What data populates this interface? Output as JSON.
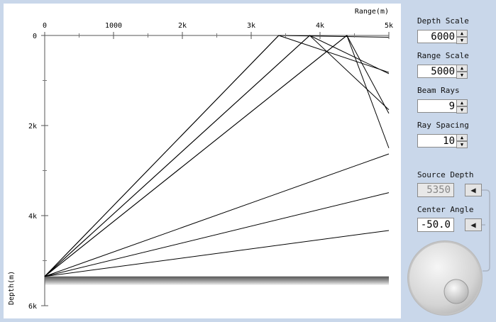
{
  "plot": {
    "range_label": "Range(m)",
    "depth_label": "Depth(m)",
    "x_ticks": [
      {
        "value": 0,
        "label": "0"
      },
      {
        "value": 1000,
        "label": "1000"
      },
      {
        "value": 2000,
        "label": "2k"
      },
      {
        "value": 3000,
        "label": "3k"
      },
      {
        "value": 4000,
        "label": "4k"
      },
      {
        "value": 5000,
        "label": "5k"
      }
    ],
    "y_ticks": [
      {
        "value": 0,
        "label": "0"
      },
      {
        "value": 2000,
        "label": "2k"
      },
      {
        "value": 4000,
        "label": "4k"
      },
      {
        "value": 6000,
        "label": "6k"
      }
    ],
    "x_range": [
      0,
      5000
    ],
    "y_range": [
      0,
      6000
    ],
    "source": {
      "range": 0,
      "depth": 5350
    },
    "bottom_depth": 5350,
    "rays": [
      {
        "end_range": 5000,
        "end_depth": 4330
      },
      {
        "end_range": 5000,
        "end_depth": 3490
      },
      {
        "end_range": 5000,
        "end_depth": 2630
      },
      {
        "end_range": 5000,
        "end_depth": 1730,
        "bounce_range": 4390
      },
      {
        "end_range": 5000,
        "end_depth": 2500,
        "bounce_range": 4390
      },
      {
        "end_range": 5000,
        "end_depth": 850,
        "bounce_range": 3850
      },
      {
        "end_range": 5000,
        "end_depth": 1650,
        "bounce_range": 3850
      },
      {
        "end_range": 5000,
        "end_depth": 40,
        "bounce_range": 3400
      },
      {
        "end_range": 5000,
        "end_depth": 820,
        "bounce_range": 3400
      }
    ]
  },
  "controls": {
    "depth_scale": {
      "label": "Depth Scale",
      "value": "6000"
    },
    "range_scale": {
      "label": "Range Scale",
      "value": "5000"
    },
    "beam_rays": {
      "label": "Beam Rays",
      "value": "9"
    },
    "ray_spacing": {
      "label": "Ray Spacing",
      "value": "10"
    },
    "source_depth": {
      "label": "Source Depth",
      "value": "5350"
    },
    "center_angle": {
      "label": "Center Angle",
      "value": "-50.0"
    }
  }
}
